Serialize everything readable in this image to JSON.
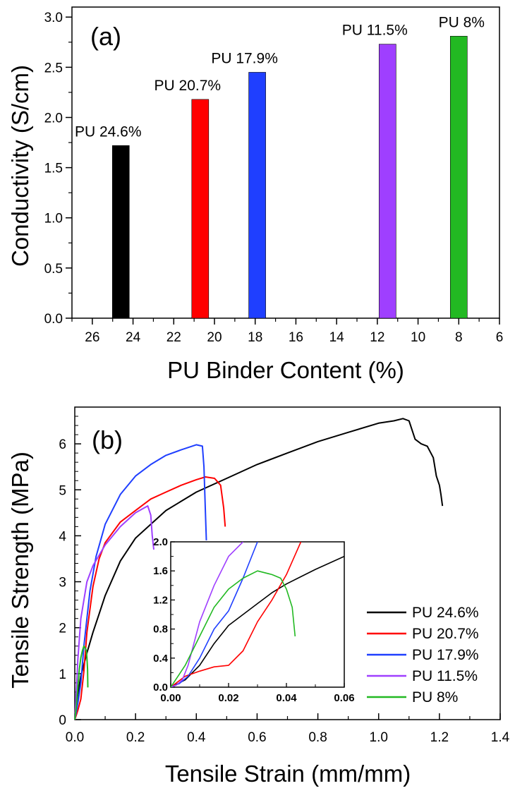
{
  "chart_data": [
    {
      "type": "bar",
      "panel_label": "(a)",
      "title": "",
      "xlabel": "PU Binder Content (%)",
      "ylabel": "Conductivity (S/cm)",
      "xlim": [
        27,
        6
      ],
      "ylim": [
        0,
        3.1
      ],
      "x_reversed": true,
      "xticks": [
        "26",
        "24",
        "22",
        "20",
        "18",
        "16",
        "14",
        "12",
        "10",
        "8",
        "6"
      ],
      "yticks": [
        "0.0",
        "0.5",
        "1.0",
        "1.5",
        "2.0",
        "2.5",
        "3.0"
      ],
      "grid": false,
      "categories": [
        "PU 24.6%",
        "PU 20.7%",
        "PU 17.9%",
        "PU 11.5%",
        "PU 8%"
      ],
      "x": [
        24.6,
        20.7,
        17.9,
        11.5,
        8
      ],
      "values": [
        1.72,
        2.18,
        2.45,
        2.73,
        2.81
      ],
      "colors": [
        "#000000",
        "#ff0000",
        "#1f3fff",
        "#9f3fff",
        "#22b922"
      ]
    },
    {
      "type": "line",
      "panel_label": "(b)",
      "title": "",
      "xlabel": "Tensile Strain (mm/mm)",
      "ylabel": "Tensile Strength (MPa)",
      "xlim": [
        0,
        1.4
      ],
      "ylim": [
        0,
        6.8
      ],
      "xticks": [
        "0.0",
        "0.2",
        "0.4",
        "0.6",
        "0.8",
        "1.0",
        "1.2",
        "1.4"
      ],
      "yticks": [
        "0",
        "1",
        "2",
        "3",
        "4",
        "5",
        "6"
      ],
      "grid": false,
      "legend": "bottom-right",
      "series": [
        {
          "name": "PU 24.6%",
          "color": "#000000",
          "x": [
            0,
            0.005,
            0.01,
            0.02,
            0.04,
            0.06,
            0.08,
            0.1,
            0.15,
            0.2,
            0.3,
            0.4,
            0.5,
            0.6,
            0.7,
            0.8,
            0.9,
            1.0,
            1.05,
            1.08,
            1.1,
            1.12,
            1.14,
            1.16,
            1.18,
            1.19,
            1.2,
            1.205,
            1.21
          ],
          "y": [
            0,
            0.3,
            0.55,
            0.95,
            1.45,
            1.9,
            2.3,
            2.7,
            3.45,
            3.95,
            4.55,
            4.95,
            5.25,
            5.55,
            5.8,
            6.05,
            6.25,
            6.45,
            6.5,
            6.55,
            6.5,
            6.1,
            6.0,
            5.95,
            5.7,
            5.3,
            5.1,
            4.9,
            4.65
          ]
        },
        {
          "name": "PU 20.7%",
          "color": "#ff0000",
          "x": [
            0,
            0.01,
            0.02,
            0.03,
            0.04,
            0.06,
            0.08,
            0.1,
            0.15,
            0.2,
            0.25,
            0.3,
            0.35,
            0.4,
            0.43,
            0.46,
            0.48,
            0.49,
            0.495
          ],
          "y": [
            0,
            0.2,
            0.45,
            1.05,
            1.9,
            2.9,
            3.5,
            3.85,
            4.3,
            4.55,
            4.8,
            4.95,
            5.1,
            5.22,
            5.28,
            5.25,
            5.1,
            4.6,
            4.2
          ]
        },
        {
          "name": "PU 17.9%",
          "color": "#1f3fff",
          "x": [
            0,
            0.01,
            0.02,
            0.03,
            0.05,
            0.07,
            0.1,
            0.15,
            0.2,
            0.25,
            0.3,
            0.35,
            0.4,
            0.42,
            0.425,
            0.43,
            0.433
          ],
          "y": [
            0,
            0.35,
            0.8,
            1.6,
            2.8,
            3.55,
            4.25,
            4.9,
            5.3,
            5.55,
            5.75,
            5.87,
            5.98,
            5.95,
            5.5,
            4.5,
            3.9
          ]
        },
        {
          "name": "PU 11.5%",
          "color": "#9f3fff",
          "x": [
            0,
            0.005,
            0.01,
            0.02,
            0.04,
            0.06,
            0.1,
            0.15,
            0.2,
            0.24,
            0.25,
            0.255,
            0.26
          ],
          "y": [
            0,
            0.6,
            1.3,
            2.2,
            3.0,
            3.35,
            3.8,
            4.2,
            4.5,
            4.65,
            4.45,
            4.0,
            3.7
          ]
        },
        {
          "name": "PU 8%",
          "color": "#22b922",
          "x": [
            0,
            0.005,
            0.01,
            0.015,
            0.02,
            0.025,
            0.03,
            0.035,
            0.038,
            0.04,
            0.042,
            0.043
          ],
          "y": [
            0,
            0.3,
            0.7,
            1.1,
            1.35,
            1.5,
            1.6,
            1.55,
            1.5,
            1.35,
            1.1,
            0.7
          ]
        }
      ],
      "inset": {
        "xlim": [
          0,
          0.06
        ],
        "ylim": [
          0,
          2.0
        ],
        "xticks": [
          "0.00",
          "0.02",
          "0.04",
          "0.06"
        ],
        "yticks": [
          "0.0",
          "0.4",
          "0.8",
          "1.2",
          "1.6",
          "2.0"
        ],
        "series": [
          {
            "name": "PU 24.6%",
            "color": "#000000",
            "x": [
              0,
              0.005,
              0.01,
              0.015,
              0.02,
              0.025,
              0.03,
              0.035,
              0.04,
              0.045,
              0.05,
              0.055,
              0.06
            ],
            "y": [
              0,
              0.1,
              0.3,
              0.6,
              0.85,
              1.0,
              1.15,
              1.3,
              1.42,
              1.52,
              1.62,
              1.71,
              1.8
            ]
          },
          {
            "name": "PU 20.7%",
            "color": "#ff0000",
            "x": [
              0,
              0.005,
              0.01,
              0.015,
              0.02,
              0.025,
              0.03,
              0.035,
              0.04,
              0.045
            ],
            "y": [
              0,
              0.15,
              0.22,
              0.28,
              0.3,
              0.5,
              0.9,
              1.2,
              1.55,
              2.0
            ]
          },
          {
            "name": "PU 17.9%",
            "color": "#1f3fff",
            "x": [
              0,
              0.003,
              0.006,
              0.01,
              0.015,
              0.02,
              0.025,
              0.03
            ],
            "y": [
              0,
              0.05,
              0.15,
              0.4,
              0.8,
              1.05,
              1.5,
              2.0
            ]
          },
          {
            "name": "PU 11.5%",
            "color": "#9f3fff",
            "x": [
              0,
              0.002,
              0.004,
              0.006,
              0.01,
              0.015,
              0.02,
              0.025
            ],
            "y": [
              0,
              0.03,
              0.1,
              0.3,
              0.9,
              1.4,
              1.8,
              2.0
            ]
          },
          {
            "name": "PU 8%",
            "color": "#22b922",
            "x": [
              0,
              0.005,
              0.01,
              0.015,
              0.02,
              0.025,
              0.03,
              0.035,
              0.038,
              0.04,
              0.042,
              0.043
            ],
            "y": [
              0,
              0.3,
              0.7,
              1.1,
              1.35,
              1.5,
              1.6,
              1.55,
              1.5,
              1.35,
              1.1,
              0.7
            ]
          }
        ]
      }
    }
  ]
}
